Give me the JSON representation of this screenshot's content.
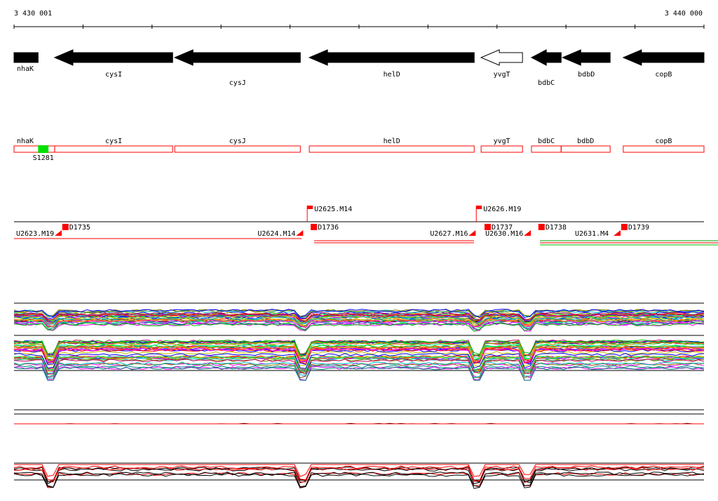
{
  "ruler": {
    "start_label": "3 430 001",
    "end_label": "3 440 000"
  },
  "genes_track": [
    {
      "label": "nhaK",
      "start": 3430001,
      "end": 3430350,
      "strand": "+",
      "filled": true
    },
    {
      "label": "cysI",
      "start": 3430590,
      "end": 3432300,
      "strand": "-",
      "filled": true
    },
    {
      "label": "cysJ",
      "start": 3432330,
      "end": 3434150,
      "strand": "-",
      "filled": true
    },
    {
      "label": "helD",
      "start": 3434280,
      "end": 3436670,
      "strand": "-",
      "filled": true
    },
    {
      "label": "yvgT",
      "start": 3436770,
      "end": 3437370,
      "strand": "-",
      "filled": false
    },
    {
      "label": "bdbC",
      "start": 3437500,
      "end": 3437930,
      "strand": "-",
      "filled": true
    },
    {
      "label": "bdbD",
      "start": 3437950,
      "end": 3438640,
      "strand": "-",
      "filled": true
    },
    {
      "label": "copB",
      "start": 3438830,
      "end": 3440000,
      "strand": "-",
      "filled": true
    }
  ],
  "annotation_track": {
    "genes": [
      {
        "label": "nhaK",
        "start": 3430001,
        "end": 3430590
      },
      {
        "label": "cysI",
        "start": 3430590,
        "end": 3432300
      },
      {
        "label": "cysJ",
        "start": 3432330,
        "end": 3434150
      },
      {
        "label": "helD",
        "start": 3434280,
        "end": 3436670
      },
      {
        "label": "yvgT",
        "start": 3436770,
        "end": 3437370
      },
      {
        "label": "bdbC",
        "start": 3437500,
        "end": 3437930
      },
      {
        "label": "bdbD",
        "start": 3437930,
        "end": 3438640
      },
      {
        "label": "copB",
        "start": 3438830,
        "end": 3440000
      }
    ],
    "feature": {
      "label": "S1281",
      "start": 3430350,
      "end": 3430500,
      "color": "#00e000"
    }
  },
  "transcript_track": {
    "labels": [
      {
        "text": "U2623.M19",
        "pos": 3430001
      },
      {
        "text": "D1735",
        "pos": 3430700
      },
      {
        "text": "U2624.M14",
        "pos": 3433500
      },
      {
        "text": "U2625.M14",
        "pos": 3434250,
        "raised": true
      },
      {
        "text": "D1736",
        "pos": 3434300
      },
      {
        "text": "U2626.M19",
        "pos": 3436700,
        "raised": true
      },
      {
        "text": "U2627.M16",
        "pos": 3436000
      },
      {
        "text": "D1737",
        "pos": 3436820
      },
      {
        "text": "U2630.M16",
        "pos": 3436800
      },
      {
        "text": "D1738",
        "pos": 3437600
      },
      {
        "text": "U2631.M4",
        "pos": 3438100
      },
      {
        "text": "D1739",
        "pos": 3438800
      }
    ]
  },
  "expression_profiles": {
    "panels": 4,
    "series_count": 40,
    "reference_colors": [
      "#000000",
      "#ff0000"
    ]
  },
  "colors": {
    "gene_fill": "#000000",
    "annotation_border": "#ff0000",
    "transcript_marker": "#ff0000",
    "feature": "#00e000"
  }
}
